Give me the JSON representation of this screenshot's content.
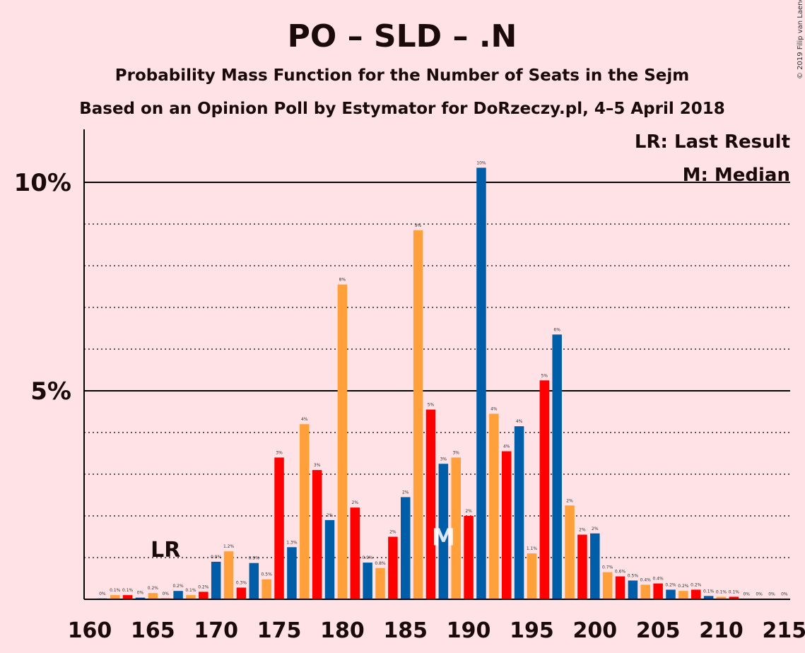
{
  "chart_data": {
    "type": "bar",
    "title": "PO – SLD – .N",
    "subtitle": "Probability Mass Function for the Number of Seats in the Sejm",
    "subtitle2": "Based on an Opinion Poll by Estymator for DoRzeczy.pl, 4–5 April 2018",
    "copyright": "© 2019 Filip van Laenen",
    "legend": {
      "lr": "LR: Last Result",
      "m": "M: Median",
      "placement": "top-right"
    },
    "lr_marker": {
      "label": "LR",
      "seat": 166
    },
    "median_marker": {
      "label": "M",
      "seat": 188
    },
    "x_ticks": [
      160,
      165,
      170,
      175,
      180,
      185,
      190,
      195,
      200,
      205,
      210,
      215
    ],
    "y_ticks": [
      {
        "value": 5,
        "label": "5%"
      },
      {
        "value": 10,
        "label": "10%"
      }
    ],
    "ylim": [
      0,
      11.3
    ],
    "xlim": [
      159.5,
      215.5
    ],
    "grid": true,
    "colors": {
      "blue": "#005EA8",
      "orange": "#FFA03B",
      "red": "#FF0000",
      "background": "#FFE2E6",
      "axis": "#000000"
    },
    "bars": [
      {
        "x": 161,
        "value": 0.02,
        "label": "0%",
        "color": "blue"
      },
      {
        "x": 162,
        "value": 0.1,
        "label": "0.1%",
        "color": "orange"
      },
      {
        "x": 163,
        "value": 0.1,
        "label": "0.1%",
        "color": "red"
      },
      {
        "x": 164,
        "value": 0.04,
        "label": "0%",
        "color": "blue"
      },
      {
        "x": 165,
        "value": 0.15,
        "label": "0.2%",
        "color": "orange"
      },
      {
        "x": 166,
        "value": 0.02,
        "label": "0%",
        "color": "red"
      },
      {
        "x": 167,
        "value": 0.2,
        "label": "0.2%",
        "color": "blue"
      },
      {
        "x": 168,
        "value": 0.1,
        "label": "0.1%",
        "color": "orange"
      },
      {
        "x": 169,
        "value": 0.18,
        "label": "0.2%",
        "color": "red"
      },
      {
        "x": 170,
        "value": 0.9,
        "label": "0.9%",
        "color": "blue"
      },
      {
        "x": 171,
        "value": 1.15,
        "label": "1.2%",
        "color": "orange"
      },
      {
        "x": 172,
        "value": 0.28,
        "label": "0.3%",
        "color": "red"
      },
      {
        "x": 173,
        "value": 0.87,
        "label": "0.9%",
        "color": "blue"
      },
      {
        "x": 174,
        "value": 0.48,
        "label": "0.5%",
        "color": "orange"
      },
      {
        "x": 175,
        "value": 3.4,
        "label": "3%",
        "color": "red"
      },
      {
        "x": 176,
        "value": 1.25,
        "label": "1.3%",
        "color": "blue"
      },
      {
        "x": 177,
        "value": 4.2,
        "label": "4%",
        "color": "orange"
      },
      {
        "x": 178,
        "value": 3.1,
        "label": "3%",
        "color": "red"
      },
      {
        "x": 179,
        "value": 1.9,
        "label": "2%",
        "color": "blue"
      },
      {
        "x": 180,
        "value": 7.55,
        "label": "8%",
        "color": "orange"
      },
      {
        "x": 181,
        "value": 2.2,
        "label": "2%",
        "color": "red"
      },
      {
        "x": 182,
        "value": 0.88,
        "label": "0.9%",
        "color": "blue"
      },
      {
        "x": 183,
        "value": 0.75,
        "label": "0.8%",
        "color": "orange"
      },
      {
        "x": 184,
        "value": 1.5,
        "label": "2%",
        "color": "red"
      },
      {
        "x": 185,
        "value": 2.45,
        "label": "2%",
        "color": "blue"
      },
      {
        "x": 186,
        "value": 8.85,
        "label": "9%",
        "color": "orange"
      },
      {
        "x": 187,
        "value": 4.55,
        "label": "5%",
        "color": "red"
      },
      {
        "x": 188,
        "value": 3.25,
        "label": "3%",
        "color": "blue"
      },
      {
        "x": 189,
        "value": 3.4,
        "label": "3%",
        "color": "orange"
      },
      {
        "x": 190,
        "value": 2.0,
        "label": "2%",
        "color": "red"
      },
      {
        "x": 191,
        "value": 10.35,
        "label": "10%",
        "color": "blue"
      },
      {
        "x": 192,
        "value": 4.45,
        "label": "4%",
        "color": "orange"
      },
      {
        "x": 193,
        "value": 3.55,
        "label": "4%",
        "color": "red"
      },
      {
        "x": 194,
        "value": 4.15,
        "label": "4%",
        "color": "blue"
      },
      {
        "x": 195,
        "value": 1.1,
        "label": "1.1%",
        "color": "orange"
      },
      {
        "x": 196,
        "value": 5.25,
        "label": "5%",
        "color": "red"
      },
      {
        "x": 197,
        "value": 6.35,
        "label": "6%",
        "color": "blue"
      },
      {
        "x": 198,
        "value": 2.25,
        "label": "2%",
        "color": "orange"
      },
      {
        "x": 199,
        "value": 1.55,
        "label": "2%",
        "color": "red"
      },
      {
        "x": 200,
        "value": 1.58,
        "label": "2%",
        "color": "blue"
      },
      {
        "x": 201,
        "value": 0.65,
        "label": "0.7%",
        "color": "orange"
      },
      {
        "x": 202,
        "value": 0.55,
        "label": "0.6%",
        "color": "red"
      },
      {
        "x": 203,
        "value": 0.45,
        "label": "0.5%",
        "color": "blue"
      },
      {
        "x": 204,
        "value": 0.35,
        "label": "0.4%",
        "color": "orange"
      },
      {
        "x": 205,
        "value": 0.38,
        "label": "0.4%",
        "color": "red"
      },
      {
        "x": 206,
        "value": 0.23,
        "label": "0.2%",
        "color": "blue"
      },
      {
        "x": 207,
        "value": 0.2,
        "label": "0.2%",
        "color": "orange"
      },
      {
        "x": 208,
        "value": 0.23,
        "label": "0.2%",
        "color": "red"
      },
      {
        "x": 209,
        "value": 0.08,
        "label": "0.1%",
        "color": "blue"
      },
      {
        "x": 210,
        "value": 0.06,
        "label": "0.1%",
        "color": "orange"
      },
      {
        "x": 211,
        "value": 0.06,
        "label": "0.1%",
        "color": "red"
      },
      {
        "x": 212,
        "value": 0.01,
        "label": "0%",
        "color": "blue"
      },
      {
        "x": 213,
        "value": 0.01,
        "label": "0%",
        "color": "orange"
      },
      {
        "x": 214,
        "value": 0.01,
        "label": "0%",
        "color": "red"
      },
      {
        "x": 215,
        "value": 0.01,
        "label": "0%",
        "color": "blue"
      }
    ]
  }
}
